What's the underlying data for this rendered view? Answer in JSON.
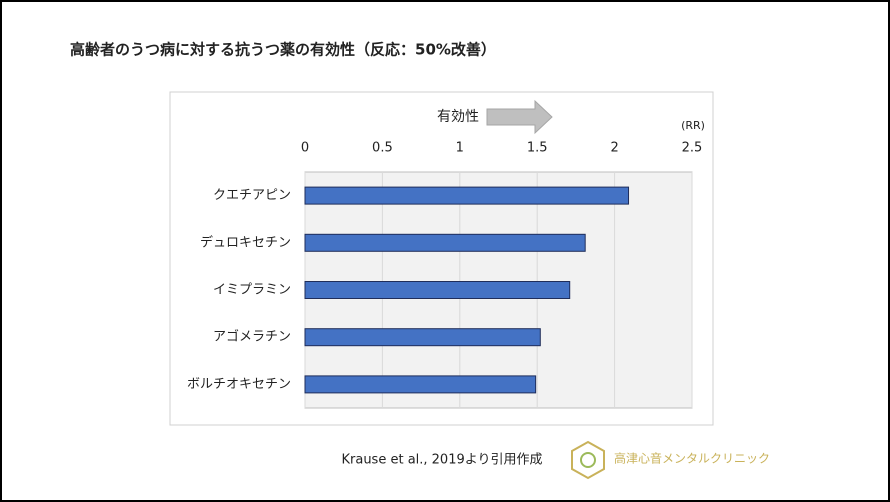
{
  "chart_data": {
    "type": "hbar",
    "title": "高齢者のうつ病に対する抗うつ薬の有効性（反応：50%改善）",
    "annotation": "有効性",
    "x_label": "(RR)",
    "categories": [
      "クエチアピン",
      "デュロキセチン",
      "イミプラミン",
      "アゴメラチン",
      "ボルチオキセチン"
    ],
    "values": [
      2.09,
      1.81,
      1.71,
      1.52,
      1.49
    ],
    "color": "#4472c4",
    "xlim": [
      0,
      2.5
    ],
    "xticks": [
      0,
      0.5,
      1,
      1.5,
      2,
      2.5
    ],
    "grid": true
  },
  "footer": {
    "source": "Krause et al., 2019より引用作成",
    "logo": "高津心音メンタルクリニック"
  }
}
